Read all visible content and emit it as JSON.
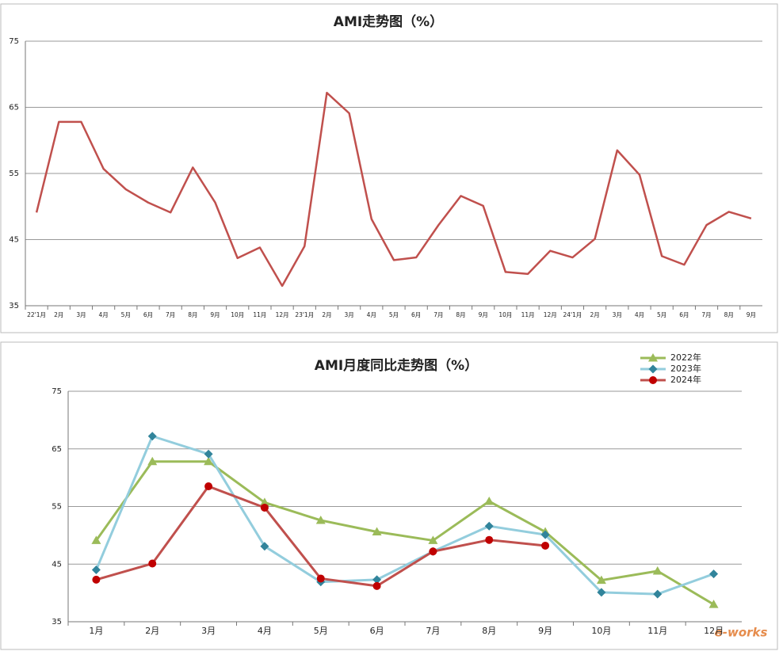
{
  "chart_data": [
    {
      "type": "line",
      "title": "AMI走势图（%）",
      "categories": [
        "22'1月",
        "2月",
        "3月",
        "4月",
        "5月",
        "6月",
        "7月",
        "8月",
        "9月",
        "10月",
        "11月",
        "12月",
        "23'1月",
        "2月",
        "3月",
        "4月",
        "5月",
        "6月",
        "7月",
        "8月",
        "9月",
        "10月",
        "11月",
        "12月",
        "24'1月",
        "2月",
        "3月",
        "4月",
        "5月",
        "6月",
        "7月",
        "8月",
        "9月"
      ],
      "series": [
        {
          "color": "#c0504d",
          "values": [
            49.1,
            62.8,
            62.8,
            55.7,
            52.6,
            50.6,
            49.1,
            55.9,
            50.6,
            42.2,
            43.8,
            38.0,
            44.0,
            67.2,
            64.1,
            48.1,
            41.9,
            42.3,
            47.2,
            51.6,
            50.1,
            40.1,
            39.8,
            43.3,
            42.3,
            45.1,
            58.5,
            54.8,
            42.5,
            41.2,
            47.2,
            49.2,
            48.2
          ]
        }
      ],
      "ylim": [
        35,
        75
      ],
      "yticks": [
        35,
        45,
        55,
        65,
        75
      ],
      "grid": true
    },
    {
      "type": "line",
      "title": "AMI月度同比走势图（%）",
      "categories": [
        "1月",
        "2月",
        "3月",
        "4月",
        "5月",
        "6月",
        "7月",
        "8月",
        "9月",
        "10月",
        "11月",
        "12月"
      ],
      "series": [
        {
          "name": "2022年",
          "color": "#9bbb59",
          "marker": "triangle",
          "marker_color": "#9bbb59",
          "values": [
            49.1,
            62.8,
            62.8,
            55.7,
            52.6,
            50.6,
            49.1,
            55.9,
            50.6,
            42.2,
            43.8,
            38.0
          ]
        },
        {
          "name": "2023年",
          "color": "#93cddd",
          "marker": "diamond",
          "marker_color": "#31849b",
          "values": [
            44.0,
            67.2,
            64.1,
            48.1,
            41.9,
            42.3,
            47.2,
            51.6,
            50.1,
            40.1,
            39.8,
            43.3
          ]
        },
        {
          "name": "2024年",
          "color": "#c0504d",
          "marker": "circle",
          "marker_color": "#c00000",
          "values": [
            42.3,
            45.1,
            58.5,
            54.8,
            42.5,
            41.2,
            47.2,
            49.2,
            48.2,
            null,
            null,
            null
          ]
        }
      ],
      "ylim": [
        35,
        75
      ],
      "yticks": [
        35,
        45,
        55,
        65,
        75
      ],
      "grid": true,
      "legend": "top-right",
      "watermark": "e-works"
    }
  ]
}
